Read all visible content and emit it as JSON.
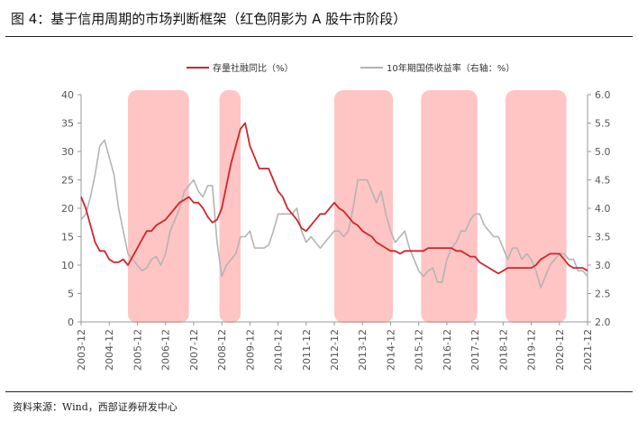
{
  "header": {
    "title": "图 4：基于信用周期的市场判断框架（红色阴影为 A 股牛市阶段）"
  },
  "footer": {
    "source": "资料来源：Wind，西部证券研发中心"
  },
  "colors": {
    "credit": "#d0262c",
    "bond": "#b4b4b4",
    "shade": "#ffc4c4",
    "axis": "#999999"
  },
  "chart_data": {
    "type": "line",
    "title": "",
    "legend_position": "top",
    "grid": false,
    "x_ticks": [
      "2003-12",
      "2004-12",
      "2005-12",
      "2006-12",
      "2007-12",
      "2008-12",
      "2009-12",
      "2010-12",
      "2011-12",
      "2012-12",
      "2013-12",
      "2014-12",
      "2015-12",
      "2016-12",
      "2017-12",
      "2018-12",
      "2019-12",
      "2020-12",
      "2021-12"
    ],
    "y_left": {
      "range": [
        0,
        40
      ],
      "ticks": [
        "0",
        "5",
        "10",
        "15",
        "20",
        "25",
        "30",
        "35",
        "40"
      ]
    },
    "y_right": {
      "range": [
        2.0,
        6.0
      ],
      "ticks": [
        "2.0",
        "2.5",
        "3.0",
        "3.5",
        "4.0",
        "4.5",
        "5.0",
        "5.5",
        "6.0"
      ]
    },
    "bull_periods": [
      {
        "start": "2005-08",
        "end": "2007-10"
      },
      {
        "start": "2008-11",
        "end": "2009-08"
      },
      {
        "start": "2012-12",
        "end": "2015-01"
      },
      {
        "start": "2016-01",
        "end": "2018-01"
      },
      {
        "start": "2019-01",
        "end": "2021-03"
      }
    ],
    "series": [
      {
        "name": "存量社融同比（%）",
        "axis": "left",
        "points": [
          [
            "2003-12",
            22
          ],
          [
            "2004-02",
            20
          ],
          [
            "2004-04",
            17
          ],
          [
            "2004-06",
            14
          ],
          [
            "2004-08",
            12.5
          ],
          [
            "2004-10",
            12.5
          ],
          [
            "2004-12",
            11
          ],
          [
            "2005-02",
            10.5
          ],
          [
            "2005-04",
            10.5
          ],
          [
            "2005-06",
            11
          ],
          [
            "2005-08",
            10
          ],
          [
            "2005-10",
            11.5
          ],
          [
            "2005-12",
            13
          ],
          [
            "2006-02",
            14.5
          ],
          [
            "2006-04",
            16
          ],
          [
            "2006-06",
            16
          ],
          [
            "2006-08",
            17
          ],
          [
            "2006-10",
            17.5
          ],
          [
            "2006-12",
            18
          ],
          [
            "2007-02",
            19
          ],
          [
            "2007-04",
            20
          ],
          [
            "2007-06",
            21
          ],
          [
            "2007-08",
            21.5
          ],
          [
            "2007-10",
            22
          ],
          [
            "2007-12",
            21
          ],
          [
            "2008-02",
            21
          ],
          [
            "2008-04",
            20
          ],
          [
            "2008-06",
            18.5
          ],
          [
            "2008-08",
            17.5
          ],
          [
            "2008-10",
            18
          ],
          [
            "2008-12",
            20
          ],
          [
            "2009-02",
            24
          ],
          [
            "2009-04",
            28
          ],
          [
            "2009-06",
            31
          ],
          [
            "2009-08",
            34
          ],
          [
            "2009-10",
            35
          ],
          [
            "2009-12",
            31
          ],
          [
            "2010-02",
            29
          ],
          [
            "2010-04",
            27
          ],
          [
            "2010-06",
            27
          ],
          [
            "2010-08",
            27
          ],
          [
            "2010-10",
            25
          ],
          [
            "2010-12",
            23
          ],
          [
            "2011-02",
            22
          ],
          [
            "2011-04",
            20
          ],
          [
            "2011-06",
            19
          ],
          [
            "2011-08",
            18
          ],
          [
            "2011-10",
            16.5
          ],
          [
            "2011-12",
            16
          ],
          [
            "2012-02",
            17
          ],
          [
            "2012-04",
            18
          ],
          [
            "2012-06",
            19
          ],
          [
            "2012-08",
            19
          ],
          [
            "2012-10",
            20
          ],
          [
            "2012-12",
            21
          ],
          [
            "2013-02",
            20
          ],
          [
            "2013-04",
            19.5
          ],
          [
            "2013-06",
            18.5
          ],
          [
            "2013-08",
            17.5
          ],
          [
            "2013-10",
            17
          ],
          [
            "2013-12",
            16
          ],
          [
            "2014-02",
            15.5
          ],
          [
            "2014-04",
            15
          ],
          [
            "2014-06",
            14
          ],
          [
            "2014-08",
            13.5
          ],
          [
            "2014-10",
            13
          ],
          [
            "2014-12",
            12.5
          ],
          [
            "2015-02",
            12.5
          ],
          [
            "2015-04",
            12
          ],
          [
            "2015-06",
            12.5
          ],
          [
            "2015-08",
            12.5
          ],
          [
            "2015-10",
            12.5
          ],
          [
            "2015-12",
            12.5
          ],
          [
            "2016-02",
            12.5
          ],
          [
            "2016-04",
            13
          ],
          [
            "2016-06",
            13
          ],
          [
            "2016-08",
            13
          ],
          [
            "2016-10",
            13
          ],
          [
            "2016-12",
            13
          ],
          [
            "2017-02",
            13
          ],
          [
            "2017-04",
            12.5
          ],
          [
            "2017-06",
            12.5
          ],
          [
            "2017-08",
            12
          ],
          [
            "2017-10",
            11.5
          ],
          [
            "2017-12",
            11.5
          ],
          [
            "2018-02",
            10.5
          ],
          [
            "2018-04",
            10
          ],
          [
            "2018-06",
            9.5
          ],
          [
            "2018-08",
            9
          ],
          [
            "2018-10",
            8.5
          ],
          [
            "2018-12",
            9
          ],
          [
            "2019-02",
            9.5
          ],
          [
            "2019-04",
            9.5
          ],
          [
            "2019-06",
            9.5
          ],
          [
            "2019-08",
            9.5
          ],
          [
            "2019-10",
            9.5
          ],
          [
            "2019-12",
            9.5
          ],
          [
            "2020-02",
            10
          ],
          [
            "2020-04",
            11
          ],
          [
            "2020-06",
            11.5
          ],
          [
            "2020-08",
            12
          ],
          [
            "2020-10",
            12
          ],
          [
            "2020-12",
            12
          ],
          [
            "2021-02",
            11
          ],
          [
            "2021-04",
            10
          ],
          [
            "2021-06",
            9.5
          ],
          [
            "2021-08",
            9.5
          ],
          [
            "2021-10",
            9.5
          ],
          [
            "2021-12",
            9
          ]
        ]
      },
      {
        "name": "10年期国债收益率（右轴：%）",
        "axis": "right",
        "points": [
          [
            "2003-12",
            3.8
          ],
          [
            "2004-02",
            3.9
          ],
          [
            "2004-04",
            4.2
          ],
          [
            "2004-06",
            4.6
          ],
          [
            "2004-08",
            5.1
          ],
          [
            "2004-10",
            5.2
          ],
          [
            "2004-12",
            4.9
          ],
          [
            "2005-02",
            4.6
          ],
          [
            "2005-04",
            4.0
          ],
          [
            "2005-06",
            3.6
          ],
          [
            "2005-08",
            3.2
          ],
          [
            "2005-10",
            3.1
          ],
          [
            "2005-12",
            3.0
          ],
          [
            "2006-02",
            2.9
          ],
          [
            "2006-04",
            2.95
          ],
          [
            "2006-06",
            3.1
          ],
          [
            "2006-08",
            3.15
          ],
          [
            "2006-10",
            3.0
          ],
          [
            "2006-12",
            3.2
          ],
          [
            "2007-02",
            3.6
          ],
          [
            "2007-04",
            3.8
          ],
          [
            "2007-06",
            4.0
          ],
          [
            "2007-08",
            4.3
          ],
          [
            "2007-10",
            4.4
          ],
          [
            "2007-12",
            4.5
          ],
          [
            "2008-02",
            4.3
          ],
          [
            "2008-04",
            4.2
          ],
          [
            "2008-06",
            4.4
          ],
          [
            "2008-08",
            4.4
          ],
          [
            "2008-10",
            3.4
          ],
          [
            "2008-12",
            2.8
          ],
          [
            "2009-02",
            3.0
          ],
          [
            "2009-04",
            3.1
          ],
          [
            "2009-06",
            3.2
          ],
          [
            "2009-08",
            3.5
          ],
          [
            "2009-10",
            3.5
          ],
          [
            "2009-12",
            3.6
          ],
          [
            "2010-02",
            3.3
          ],
          [
            "2010-04",
            3.3
          ],
          [
            "2010-06",
            3.3
          ],
          [
            "2010-08",
            3.35
          ],
          [
            "2010-10",
            3.6
          ],
          [
            "2010-12",
            3.9
          ],
          [
            "2011-02",
            3.9
          ],
          [
            "2011-04",
            3.9
          ],
          [
            "2011-06",
            3.9
          ],
          [
            "2011-08",
            4.0
          ],
          [
            "2011-10",
            3.6
          ],
          [
            "2011-12",
            3.4
          ],
          [
            "2012-02",
            3.5
          ],
          [
            "2012-04",
            3.4
          ],
          [
            "2012-06",
            3.3
          ],
          [
            "2012-08",
            3.4
          ],
          [
            "2012-10",
            3.5
          ],
          [
            "2012-12",
            3.6
          ],
          [
            "2013-02",
            3.6
          ],
          [
            "2013-04",
            3.5
          ],
          [
            "2013-06",
            3.6
          ],
          [
            "2013-08",
            4.0
          ],
          [
            "2013-10",
            4.5
          ],
          [
            "2013-12",
            4.5
          ],
          [
            "2014-02",
            4.5
          ],
          [
            "2014-04",
            4.3
          ],
          [
            "2014-06",
            4.1
          ],
          [
            "2014-08",
            4.3
          ],
          [
            "2014-10",
            3.9
          ],
          [
            "2014-12",
            3.6
          ],
          [
            "2015-02",
            3.4
          ],
          [
            "2015-04",
            3.5
          ],
          [
            "2015-06",
            3.6
          ],
          [
            "2015-08",
            3.3
          ],
          [
            "2015-10",
            3.1
          ],
          [
            "2015-12",
            2.9
          ],
          [
            "2016-02",
            2.8
          ],
          [
            "2016-04",
            2.9
          ],
          [
            "2016-06",
            2.95
          ],
          [
            "2016-08",
            2.7
          ],
          [
            "2016-10",
            2.7
          ],
          [
            "2016-12",
            3.1
          ],
          [
            "2017-02",
            3.3
          ],
          [
            "2017-04",
            3.4
          ],
          [
            "2017-06",
            3.6
          ],
          [
            "2017-08",
            3.6
          ],
          [
            "2017-10",
            3.8
          ],
          [
            "2017-12",
            3.9
          ],
          [
            "2018-02",
            3.9
          ],
          [
            "2018-04",
            3.7
          ],
          [
            "2018-06",
            3.6
          ],
          [
            "2018-08",
            3.5
          ],
          [
            "2018-10",
            3.5
          ],
          [
            "2018-12",
            3.3
          ],
          [
            "2019-02",
            3.1
          ],
          [
            "2019-04",
            3.3
          ],
          [
            "2019-06",
            3.3
          ],
          [
            "2019-08",
            3.1
          ],
          [
            "2019-10",
            3.2
          ],
          [
            "2019-12",
            3.1
          ],
          [
            "2020-02",
            2.9
          ],
          [
            "2020-04",
            2.6
          ],
          [
            "2020-06",
            2.8
          ],
          [
            "2020-08",
            3.0
          ],
          [
            "2020-10",
            3.1
          ],
          [
            "2020-12",
            3.2
          ],
          [
            "2021-02",
            3.2
          ],
          [
            "2021-04",
            3.1
          ],
          [
            "2021-06",
            3.1
          ],
          [
            "2021-08",
            2.9
          ],
          [
            "2021-10",
            2.9
          ],
          [
            "2021-12",
            2.8
          ]
        ]
      }
    ]
  }
}
